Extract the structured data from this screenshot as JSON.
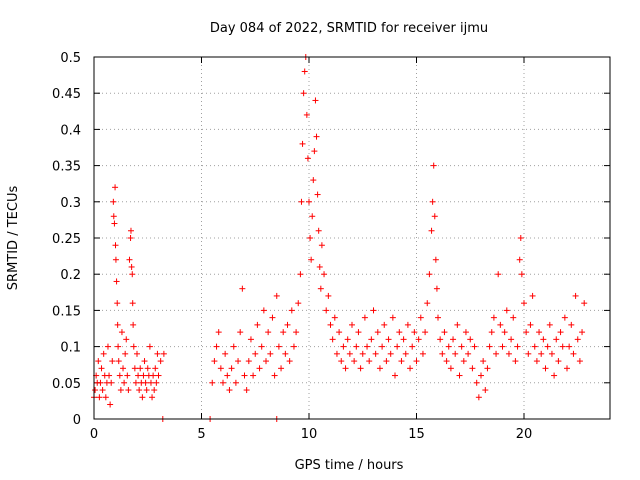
{
  "chart_data": {
    "type": "scatter",
    "title": "Day 084 of 2022, SRMTID for receiver ijmu",
    "xlabel": "GPS time / hours",
    "ylabel": "SRMTID / TECUs",
    "xlim": [
      0,
      24
    ],
    "ylim": [
      0,
      0.5
    ],
    "xticks": [
      0,
      5,
      10,
      15,
      20
    ],
    "yticks": [
      0,
      0.05,
      0.1,
      0.15,
      0.2,
      0.25,
      0.3,
      0.35,
      0.4,
      0.45,
      0.5
    ],
    "xtick_labels": [
      "0",
      "5",
      "10",
      "15",
      "20"
    ],
    "ytick_labels": [
      "0",
      "0.05",
      "0.1",
      "0.15",
      "0.2",
      "0.25",
      "0.3",
      "0.35",
      "0.4",
      "0.45",
      "0.5"
    ],
    "marker": "+",
    "color": "#ff0000",
    "grid": true,
    "series": [
      {
        "name": "SRMTID",
        "points": [
          [
            0.0,
            0.03
          ],
          [
            0.05,
            0.04
          ],
          [
            0.1,
            0.06
          ],
          [
            0.15,
            0.05
          ],
          [
            0.2,
            0.08
          ],
          [
            0.25,
            0.03
          ],
          [
            0.3,
            0.05
          ],
          [
            0.35,
            0.07
          ],
          [
            0.4,
            0.04
          ],
          [
            0.45,
            0.09
          ],
          [
            0.5,
            0.06
          ],
          [
            0.55,
            0.03
          ],
          [
            0.6,
            0.05
          ],
          [
            0.65,
            0.1
          ],
          [
            0.7,
            0.06
          ],
          [
            0.75,
            0.02
          ],
          [
            0.8,
            0.05
          ],
          [
            0.85,
            0.08
          ],
          [
            0.9,
            0.3
          ],
          [
            0.92,
            0.28
          ],
          [
            0.95,
            0.27
          ],
          [
            0.98,
            0.32
          ],
          [
            1.0,
            0.24
          ],
          [
            1.02,
            0.22
          ],
          [
            1.05,
            0.19
          ],
          [
            1.08,
            0.16
          ],
          [
            1.1,
            0.13
          ],
          [
            1.12,
            0.1
          ],
          [
            1.15,
            0.08
          ],
          [
            1.2,
            0.06
          ],
          [
            1.25,
            0.04
          ],
          [
            1.3,
            0.12
          ],
          [
            1.35,
            0.07
          ],
          [
            1.4,
            0.05
          ],
          [
            1.45,
            0.09
          ],
          [
            1.5,
            0.11
          ],
          [
            1.55,
            0.06
          ],
          [
            1.6,
            0.04
          ],
          [
            1.65,
            0.22
          ],
          [
            1.7,
            0.25
          ],
          [
            1.72,
            0.26
          ],
          [
            1.75,
            0.21
          ],
          [
            1.78,
            0.2
          ],
          [
            1.8,
            0.16
          ],
          [
            1.82,
            0.13
          ],
          [
            1.85,
            0.1
          ],
          [
            1.9,
            0.07
          ],
          [
            1.95,
            0.05
          ],
          [
            2.0,
            0.09
          ],
          [
            2.05,
            0.06
          ],
          [
            2.1,
            0.04
          ],
          [
            2.15,
            0.07
          ],
          [
            2.2,
            0.05
          ],
          [
            2.25,
            0.03
          ],
          [
            2.3,
            0.06
          ],
          [
            2.35,
            0.08
          ],
          [
            2.4,
            0.05
          ],
          [
            2.45,
            0.04
          ],
          [
            2.5,
            0.07
          ],
          [
            2.55,
            0.06
          ],
          [
            2.6,
            0.1
          ],
          [
            2.65,
            0.05
          ],
          [
            2.7,
            0.03
          ],
          [
            2.75,
            0.06
          ],
          [
            2.8,
            0.04
          ],
          [
            2.85,
            0.07
          ],
          [
            2.9,
            0.05
          ],
          [
            2.95,
            0.09
          ],
          [
            3.0,
            0.06
          ],
          [
            3.1,
            0.08
          ],
          [
            3.25,
            0.09
          ],
          [
            3.2,
            0.0
          ],
          [
            5.4,
            0.0
          ],
          [
            8.5,
            0.0
          ],
          [
            5.5,
            0.05
          ],
          [
            5.6,
            0.08
          ],
          [
            5.7,
            0.1
          ],
          [
            5.8,
            0.12
          ],
          [
            5.9,
            0.07
          ],
          [
            6.0,
            0.05
          ],
          [
            6.1,
            0.09
          ],
          [
            6.2,
            0.06
          ],
          [
            6.3,
            0.04
          ],
          [
            6.4,
            0.07
          ],
          [
            6.5,
            0.1
          ],
          [
            6.6,
            0.05
          ],
          [
            6.7,
            0.08
          ],
          [
            6.8,
            0.12
          ],
          [
            6.9,
            0.18
          ],
          [
            7.0,
            0.06
          ],
          [
            7.1,
            0.04
          ],
          [
            7.2,
            0.08
          ],
          [
            7.3,
            0.11
          ],
          [
            7.4,
            0.06
          ],
          [
            7.5,
            0.09
          ],
          [
            7.6,
            0.13
          ],
          [
            7.7,
            0.07
          ],
          [
            7.8,
            0.1
          ],
          [
            7.9,
            0.15
          ],
          [
            8.0,
            0.08
          ],
          [
            8.1,
            0.12
          ],
          [
            8.2,
            0.09
          ],
          [
            8.3,
            0.14
          ],
          [
            8.4,
            0.06
          ],
          [
            8.5,
            0.17
          ],
          [
            8.6,
            0.1
          ],
          [
            8.7,
            0.07
          ],
          [
            8.8,
            0.12
          ],
          [
            8.9,
            0.09
          ],
          [
            9.0,
            0.13
          ],
          [
            9.1,
            0.08
          ],
          [
            9.2,
            0.15
          ],
          [
            9.3,
            0.1
          ],
          [
            9.4,
            0.12
          ],
          [
            9.5,
            0.16
          ],
          [
            9.6,
            0.2
          ],
          [
            9.65,
            0.3
          ],
          [
            9.7,
            0.38
          ],
          [
            9.75,
            0.45
          ],
          [
            9.8,
            0.48
          ],
          [
            9.85,
            0.5
          ],
          [
            9.9,
            0.42
          ],
          [
            9.95,
            0.36
          ],
          [
            10.0,
            0.3
          ],
          [
            10.05,
            0.25
          ],
          [
            10.1,
            0.22
          ],
          [
            10.15,
            0.28
          ],
          [
            10.2,
            0.33
          ],
          [
            10.25,
            0.37
          ],
          [
            10.3,
            0.44
          ],
          [
            10.35,
            0.39
          ],
          [
            10.4,
            0.31
          ],
          [
            10.45,
            0.26
          ],
          [
            10.5,
            0.21
          ],
          [
            10.55,
            0.18
          ],
          [
            10.6,
            0.24
          ],
          [
            10.7,
            0.2
          ],
          [
            10.8,
            0.15
          ],
          [
            10.9,
            0.17
          ],
          [
            11.0,
            0.13
          ],
          [
            11.1,
            0.11
          ],
          [
            11.2,
            0.14
          ],
          [
            11.3,
            0.09
          ],
          [
            11.4,
            0.12
          ],
          [
            11.5,
            0.08
          ],
          [
            11.6,
            0.1
          ],
          [
            11.7,
            0.07
          ],
          [
            11.8,
            0.11
          ],
          [
            11.9,
            0.09
          ],
          [
            12.0,
            0.13
          ],
          [
            12.1,
            0.08
          ],
          [
            12.2,
            0.1
          ],
          [
            12.3,
            0.12
          ],
          [
            12.4,
            0.07
          ],
          [
            12.5,
            0.09
          ],
          [
            12.6,
            0.14
          ],
          [
            12.7,
            0.1
          ],
          [
            12.8,
            0.08
          ],
          [
            12.9,
            0.11
          ],
          [
            13.0,
            0.15
          ],
          [
            13.1,
            0.09
          ],
          [
            13.2,
            0.12
          ],
          [
            13.3,
            0.07
          ],
          [
            13.4,
            0.1
          ],
          [
            13.5,
            0.13
          ],
          [
            13.6,
            0.08
          ],
          [
            13.7,
            0.11
          ],
          [
            13.8,
            0.09
          ],
          [
            13.9,
            0.14
          ],
          [
            14.0,
            0.06
          ],
          [
            14.1,
            0.1
          ],
          [
            14.2,
            0.12
          ],
          [
            14.3,
            0.08
          ],
          [
            14.4,
            0.11
          ],
          [
            14.5,
            0.09
          ],
          [
            14.6,
            0.13
          ],
          [
            14.7,
            0.07
          ],
          [
            14.8,
            0.1
          ],
          [
            14.9,
            0.12
          ],
          [
            15.0,
            0.08
          ],
          [
            15.1,
            0.11
          ],
          [
            15.2,
            0.14
          ],
          [
            15.3,
            0.09
          ],
          [
            15.4,
            0.12
          ],
          [
            15.5,
            0.16
          ],
          [
            15.6,
            0.2
          ],
          [
            15.7,
            0.26
          ],
          [
            15.75,
            0.3
          ],
          [
            15.8,
            0.35
          ],
          [
            15.85,
            0.28
          ],
          [
            15.9,
            0.22
          ],
          [
            15.95,
            0.18
          ],
          [
            16.0,
            0.14
          ],
          [
            16.1,
            0.11
          ],
          [
            16.2,
            0.09
          ],
          [
            16.3,
            0.12
          ],
          [
            16.4,
            0.08
          ],
          [
            16.5,
            0.1
          ],
          [
            16.6,
            0.07
          ],
          [
            16.7,
            0.11
          ],
          [
            16.8,
            0.09
          ],
          [
            16.9,
            0.13
          ],
          [
            17.0,
            0.06
          ],
          [
            17.1,
            0.1
          ],
          [
            17.2,
            0.08
          ],
          [
            17.3,
            0.12
          ],
          [
            17.4,
            0.09
          ],
          [
            17.5,
            0.11
          ],
          [
            17.6,
            0.07
          ],
          [
            17.7,
            0.1
          ],
          [
            17.8,
            0.05
          ],
          [
            17.9,
            0.03
          ],
          [
            18.0,
            0.06
          ],
          [
            18.1,
            0.08
          ],
          [
            18.2,
            0.04
          ],
          [
            18.3,
            0.07
          ],
          [
            18.4,
            0.1
          ],
          [
            18.5,
            0.12
          ],
          [
            18.6,
            0.14
          ],
          [
            18.7,
            0.09
          ],
          [
            18.8,
            0.2
          ],
          [
            18.9,
            0.13
          ],
          [
            19.0,
            0.1
          ],
          [
            19.1,
            0.12
          ],
          [
            19.2,
            0.15
          ],
          [
            19.3,
            0.09
          ],
          [
            19.4,
            0.11
          ],
          [
            19.5,
            0.14
          ],
          [
            19.6,
            0.08
          ],
          [
            19.7,
            0.1
          ],
          [
            19.8,
            0.22
          ],
          [
            19.85,
            0.25
          ],
          [
            19.9,
            0.2
          ],
          [
            20.0,
            0.16
          ],
          [
            20.1,
            0.12
          ],
          [
            20.2,
            0.09
          ],
          [
            20.3,
            0.13
          ],
          [
            20.4,
            0.17
          ],
          [
            20.5,
            0.1
          ],
          [
            20.6,
            0.08
          ],
          [
            20.7,
            0.12
          ],
          [
            20.8,
            0.09
          ],
          [
            20.9,
            0.11
          ],
          [
            21.0,
            0.07
          ],
          [
            21.1,
            0.1
          ],
          [
            21.2,
            0.13
          ],
          [
            21.3,
            0.09
          ],
          [
            21.4,
            0.06
          ],
          [
            21.5,
            0.11
          ],
          [
            21.6,
            0.08
          ],
          [
            21.7,
            0.12
          ],
          [
            21.8,
            0.1
          ],
          [
            21.9,
            0.14
          ],
          [
            22.0,
            0.07
          ],
          [
            22.1,
            0.1
          ],
          [
            22.2,
            0.13
          ],
          [
            22.3,
            0.09
          ],
          [
            22.4,
            0.17
          ],
          [
            22.5,
            0.11
          ],
          [
            22.6,
            0.08
          ],
          [
            22.7,
            0.12
          ],
          [
            22.8,
            0.16
          ]
        ]
      }
    ]
  }
}
